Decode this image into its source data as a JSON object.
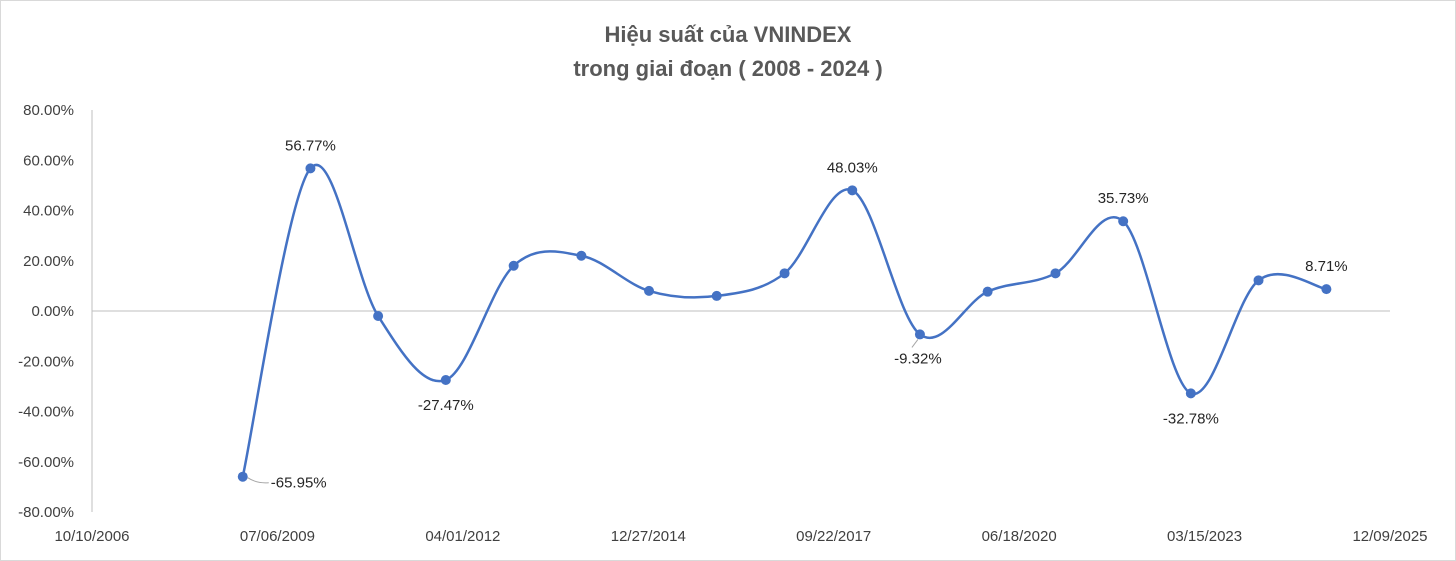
{
  "chart_data": {
    "type": "line",
    "title": "Hiệu suất của VNINDEX",
    "subtitle": "trong giai đoạn ( 2008 - 2024 )",
    "xlabel": "",
    "ylabel": "",
    "x_axis": {
      "type": "date",
      "range": [
        "10/10/2006",
        "12/09/2025"
      ],
      "tick_labels": [
        "10/10/2006",
        "07/06/2009",
        "04/01/2012",
        "12/27/2014",
        "09/22/2017",
        "06/18/2020",
        "03/15/2023",
        "12/09/2025"
      ]
    },
    "y_axis": {
      "range": [
        -0.8,
        0.8
      ],
      "step": 0.2,
      "tick_labels": [
        "80.00%",
        "60.00%",
        "40.00%",
        "20.00%",
        "0.00%",
        "-20.00%",
        "-40.00%",
        "-60.00%",
        "-80.00%"
      ]
    },
    "grid": false,
    "legend": "none",
    "series": [
      {
        "color": "#4472c4",
        "points": [
          {
            "x": "2008-12-31",
            "y": -0.6595,
            "label": "-65.95%"
          },
          {
            "x": "2009-12-31",
            "y": 0.5677,
            "label": "56.77%"
          },
          {
            "x": "2010-12-31",
            "y": -0.02,
            "label": ""
          },
          {
            "x": "2011-12-31",
            "y": -0.2747,
            "label": "-27.47%"
          },
          {
            "x": "2012-12-31",
            "y": 0.18,
            "label": ""
          },
          {
            "x": "2013-12-31",
            "y": 0.22,
            "label": ""
          },
          {
            "x": "2014-12-31",
            "y": 0.08,
            "label": ""
          },
          {
            "x": "2015-12-31",
            "y": 0.06,
            "label": ""
          },
          {
            "x": "2016-12-31",
            "y": 0.15,
            "label": ""
          },
          {
            "x": "2017-12-31",
            "y": 0.4803,
            "label": "48.03%"
          },
          {
            "x": "2018-12-31",
            "y": -0.0932,
            "label": "-9.32%"
          },
          {
            "x": "2019-12-31",
            "y": 0.077,
            "label": ""
          },
          {
            "x": "2020-12-31",
            "y": 0.15,
            "label": ""
          },
          {
            "x": "2021-12-31",
            "y": 0.3573,
            "label": "35.73%"
          },
          {
            "x": "2022-12-31",
            "y": -0.3278,
            "label": "-32.78%"
          },
          {
            "x": "2023-12-31",
            "y": 0.122,
            "label": ""
          },
          {
            "x": "2024-12-31",
            "y": 0.0871,
            "label": "8.71%"
          }
        ]
      }
    ],
    "axis_color": "#bfbfbf",
    "leader_line_color": "#a6a6a6"
  }
}
